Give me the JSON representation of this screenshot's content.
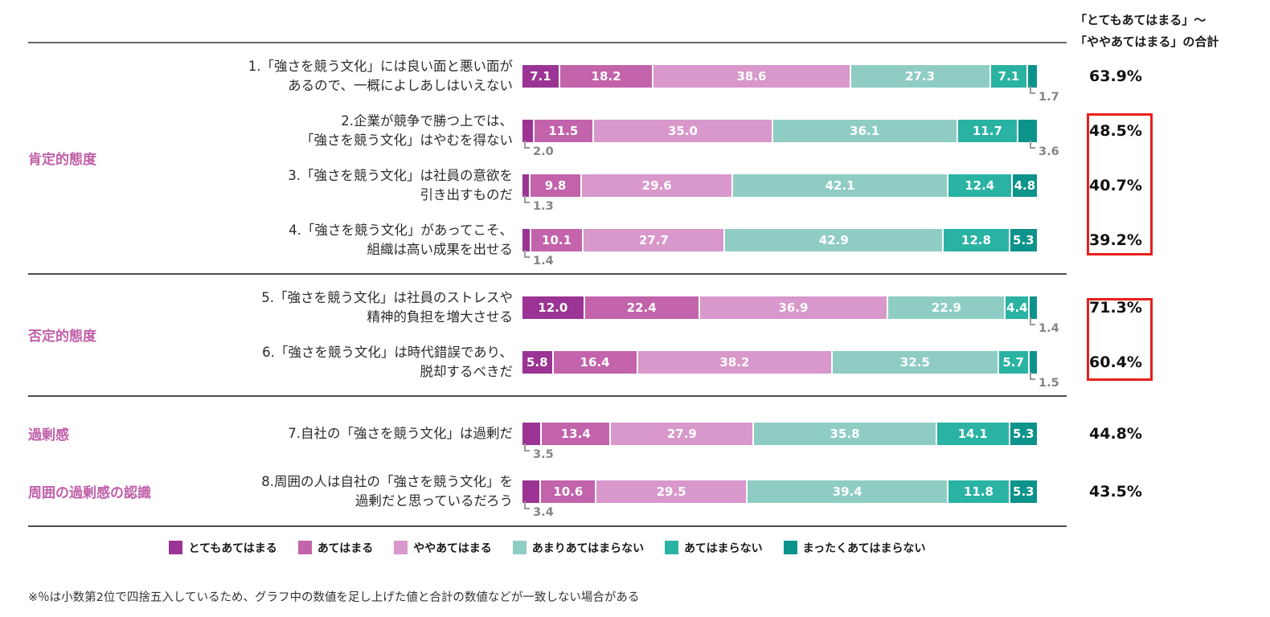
{
  "total_header": {
    "line1": "「とてもあてはまる」～",
    "line2": "「ややあてはまる」の合計"
  },
  "footnote": "※％は小数第2位で四捨五入しているため、グラフ中の数値を足し上げた値と合計の数値などが一致しない場合がある",
  "chart_data": {
    "type": "bar",
    "orientation": "horizontal",
    "stacked": true,
    "unit": "%",
    "xlim": [
      0,
      100
    ],
    "grid": false,
    "legend_position": "bottom",
    "legend": [
      {
        "label": "とてもあてはまる",
        "color": "#9b3494"
      },
      {
        "label": "あてはまる",
        "color": "#c263ab"
      },
      {
        "label": "ややあてはまる",
        "color": "#d898cb"
      },
      {
        "label": "あまりあてはまらない",
        "color": "#8fcdc4"
      },
      {
        "label": "あてはまらない",
        "color": "#2ab3a3"
      },
      {
        "label": "まったくあてはまらない",
        "color": "#0c938b"
      }
    ],
    "groups": [
      {
        "category": "肯定的態度",
        "separator_above": true,
        "items": [
          {
            "label_lines": [
              "1.「強さを競う文化」には良い面と悪い面が",
              "あるので、一概によしあしはいえない"
            ],
            "values": [
              "7.1",
              "18.2",
              "38.6",
              "27.3",
              "7.1",
              "1.7"
            ],
            "callouts": [
              {
                "segment": 5,
                "value": "1.7",
                "position": "right"
              }
            ],
            "total": "63.9%",
            "total_highlighted": false
          },
          {
            "label_lines": [
              "2.企業が競争で勝つ上では、",
              "「強さを競う文化」はやむを得ない"
            ],
            "values": [
              "2.0",
              "11.5",
              "35.0",
              "36.1",
              "11.7",
              "3.6"
            ],
            "callouts": [
              {
                "segment": 0,
                "value": "2.0",
                "position": "left"
              },
              {
                "segment": 5,
                "value": "3.6",
                "position": "right"
              }
            ],
            "total": "48.5%",
            "total_highlighted": true
          },
          {
            "label_lines": [
              "3.「強さを競う文化」は社員の意欲を",
              "引き出すものだ"
            ],
            "values": [
              "1.3",
              "9.8",
              "29.6",
              "42.1",
              "12.4",
              "4.8"
            ],
            "callouts": [
              {
                "segment": 0,
                "value": "1.3",
                "position": "left"
              }
            ],
            "total": "40.7%",
            "total_highlighted": true
          },
          {
            "label_lines": [
              "4.「強さを競う文化」があってこそ、",
              "組織は高い成果を出せる"
            ],
            "values": [
              "1.4",
              "10.1",
              "27.7",
              "42.9",
              "12.8",
              "5.3"
            ],
            "callouts": [
              {
                "segment": 0,
                "value": "1.4",
                "position": "left"
              }
            ],
            "total": "39.2%",
            "total_highlighted": true
          }
        ]
      },
      {
        "category": "否定的態度",
        "separator_above": true,
        "items": [
          {
            "label_lines": [
              "5.「強さを競う文化」は社員のストレスや",
              "精神的負担を増大させる"
            ],
            "values": [
              "12.0",
              "22.4",
              "36.9",
              "22.9",
              "4.4",
              "1.4"
            ],
            "callouts": [
              {
                "segment": 5,
                "value": "1.4",
                "position": "right"
              }
            ],
            "total": "71.3%",
            "total_highlighted": true
          },
          {
            "label_lines": [
              "6.「強さを競う文化」は時代錯誤であり、",
              "脱却するべきだ"
            ],
            "values": [
              "5.8",
              "16.4",
              "38.2",
              "32.5",
              "5.7",
              "1.5"
            ],
            "callouts": [
              {
                "segment": 5,
                "value": "1.5",
                "position": "right"
              }
            ],
            "total": "60.4%",
            "total_highlighted": true
          }
        ]
      },
      {
        "category": "過剰感",
        "separator_above": true,
        "items": [
          {
            "label_lines": [
              "7.自社の「強さを競う文化」は過剰だ"
            ],
            "values": [
              "3.5",
              "13.4",
              "27.9",
              "35.8",
              "14.1",
              "5.3"
            ],
            "callouts": [
              {
                "segment": 0,
                "value": "3.5",
                "position": "left"
              }
            ],
            "total": "44.8%",
            "total_highlighted": false
          }
        ]
      },
      {
        "category": "周囲の過剰感の認識",
        "separator_above": false,
        "items": [
          {
            "label_lines": [
              "8.周囲の人は自社の「強さを競う文化」を",
              "過剰だと思っているだろう"
            ],
            "values": [
              "3.4",
              "10.6",
              "29.5",
              "39.4",
              "11.8",
              "5.3"
            ],
            "callouts": [
              {
                "segment": 0,
                "value": "3.4",
                "position": "left"
              }
            ],
            "total": "43.5%",
            "total_highlighted": false
          }
        ]
      }
    ]
  }
}
